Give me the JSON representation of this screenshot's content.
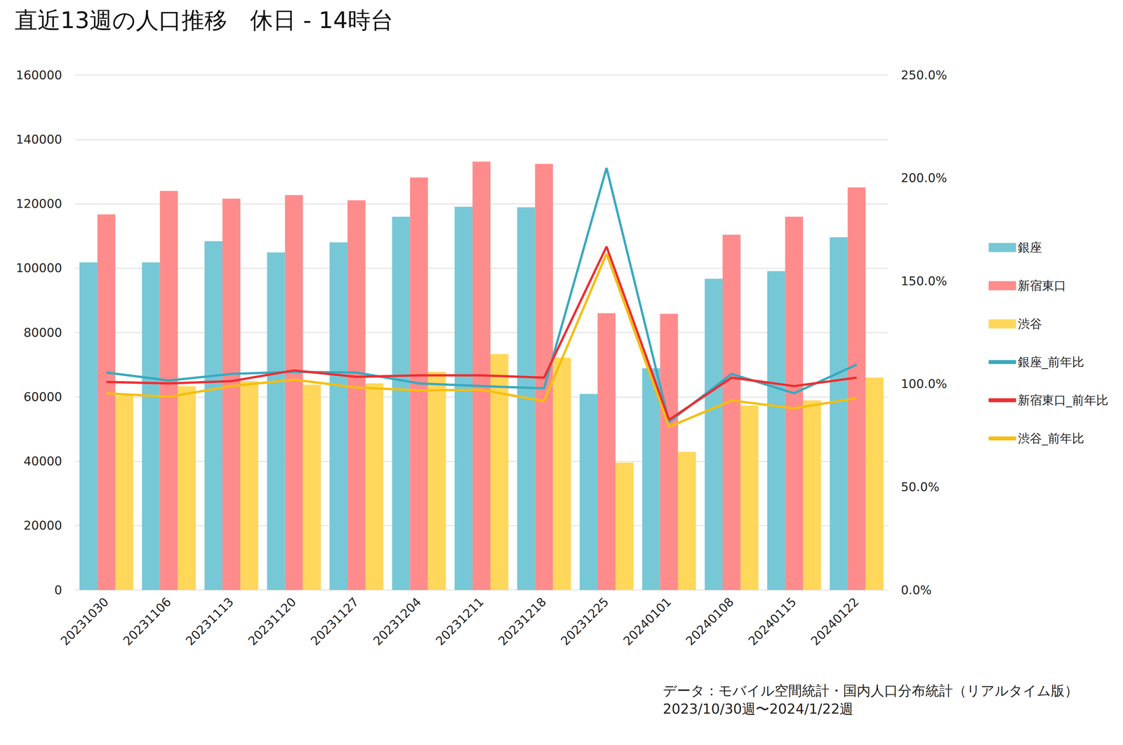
{
  "chart_data": {
    "type": "bar",
    "title": "直近13週の人口推移　休日 - 14時台",
    "annotations": [
      "データ：モバイル空間統計・国内人口分布統計（リアルタイム版）",
      "2023/10/30週〜2024/1/22週"
    ],
    "categories": [
      "20231030",
      "20231106",
      "20231113",
      "20231120",
      "20231127",
      "20231204",
      "20231211",
      "20231218",
      "20231225",
      "20240101",
      "20240108",
      "20240115",
      "20240122"
    ],
    "series": [
      {
        "name": "銀座",
        "type": "bar",
        "color": "#77C8D6",
        "values": [
          101800,
          101800,
          108400,
          104900,
          108000,
          116000,
          119100,
          118900,
          60900,
          68900,
          96700,
          99100,
          109600
        ]
      },
      {
        "name": "新宿東口",
        "type": "bar",
        "color": "#FF8C8C",
        "values": [
          116700,
          124000,
          121600,
          122700,
          121100,
          128200,
          133100,
          132400,
          86000,
          85800,
          110400,
          116000,
          125100
        ]
      },
      {
        "name": "渋谷",
        "type": "bar",
        "color": "#FFD75A",
        "values": [
          60400,
          63300,
          64900,
          63800,
          64200,
          67800,
          73300,
          72200,
          39600,
          42900,
          57300,
          58900,
          66000
        ]
      },
      {
        "name": "銀座_前年比",
        "type": "line",
        "axis": "y2",
        "color": "#3AA9C0",
        "values": [
          105.6,
          101.7,
          104.9,
          105.9,
          105.6,
          100.3,
          99.0,
          97.9,
          204.9,
          81.6,
          104.9,
          95.5,
          109.4
        ]
      },
      {
        "name": "新宿東口_前年比",
        "type": "line",
        "axis": "y2",
        "color": "#EE2E31",
        "values": [
          101.0,
          100.3,
          101.4,
          106.6,
          103.5,
          104.2,
          104.2,
          103.1,
          166.7,
          82.6,
          103.1,
          99.0,
          103.1
        ]
      },
      {
        "name": "渋谷_前年比",
        "type": "line",
        "axis": "y2",
        "color": "#F5BE0E",
        "values": [
          95.5,
          93.8,
          99.0,
          102.1,
          98.3,
          96.9,
          97.2,
          91.7,
          163.2,
          79.2,
          92.0,
          88.2,
          93.1
        ]
      }
    ],
    "ylim": [
      0,
      160000
    ],
    "yticks": [
      0,
      20000,
      40000,
      60000,
      80000,
      100000,
      120000,
      140000,
      160000
    ],
    "y2lim": [
      0,
      250
    ],
    "y2ticks": [
      {
        "value": 0,
        "label": "0.0%"
      },
      {
        "value": 50,
        "label": "50.0%"
      },
      {
        "value": 100,
        "label": "100.0%"
      },
      {
        "value": 150,
        "label": "150.0%"
      },
      {
        "value": 200,
        "label": "200.0%"
      },
      {
        "value": 250,
        "label": "250.0%"
      }
    ],
    "grid": true,
    "legend": "right"
  }
}
